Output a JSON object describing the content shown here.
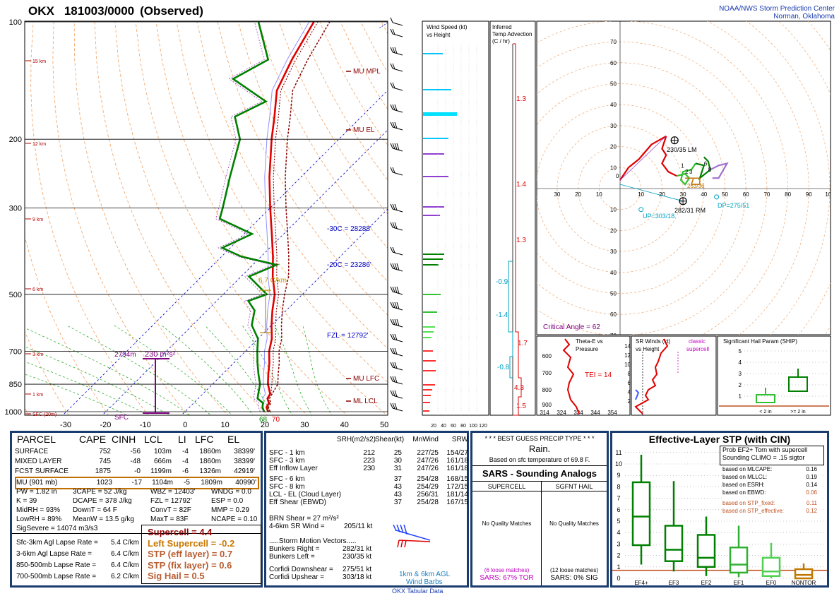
{
  "header": {
    "station": "OKX",
    "time_label": "181003/0000",
    "kind": "(Observed)",
    "org_line1": "NOAA/NWS Storm Prediction Center",
    "org_line2": "Norman, Oklahoma"
  },
  "colors": {
    "temp": "#e00000",
    "dewpoint": "#008000",
    "dry_adiabat": "#f0a060",
    "moist_adiabat": "#a0d0a0",
    "parcel": "#8b0000",
    "isotherm_ref": "#0000c0",
    "effective_inflow": "#800080",
    "panel_border": "#1a3c6e"
  },
  "chart_data": [
    {
      "type": "line",
      "name": "skewt",
      "pressure_ticks": [
        "100",
        "200",
        "300",
        "500",
        "700",
        "850",
        "1000"
      ],
      "temperature_ticks": [
        "-30",
        "-20",
        "-10",
        "0",
        "10",
        "20",
        "30",
        "40",
        "50"
      ],
      "height_labels": [
        "15 km",
        "12 km",
        "9 km",
        "6 km",
        "3 km",
        "1 km",
        "SFC (20m)"
      ],
      "annotations": {
        "mu_mpl": "MU MPL",
        "mu_el": "MU EL",
        "mu_lfc": "MU LFC",
        "ml_lcl": "ML LCL",
        "m30c": "-30C = 28288'",
        "m20c": "-20C = 23286'",
        "fzl": "FZL = 12792'",
        "lapse": "6.7 C/km",
        "eff_inflow_top": "2794m",
        "eff_inflow_srh": "230 m²s²",
        "sfc": "SFC",
        "sfc_t": "70",
        "sfc_td": "68"
      },
      "temperature_profile": [
        [
          1000,
          21
        ],
        [
          975,
          19.5
        ],
        [
          950,
          19
        ],
        [
          925,
          17.5
        ],
        [
          900,
          17
        ],
        [
          850,
          14
        ],
        [
          800,
          11.5
        ],
        [
          750,
          9
        ],
        [
          700,
          6
        ],
        [
          650,
          3.5
        ],
        [
          600,
          0
        ],
        [
          550,
          -3.5
        ],
        [
          500,
          -7
        ],
        [
          450,
          -12
        ],
        [
          400,
          -17
        ],
        [
          350,
          -23
        ],
        [
          300,
          -30
        ],
        [
          250,
          -38
        ],
        [
          200,
          -47
        ],
        [
          175,
          -52
        ],
        [
          150,
          -58
        ],
        [
          125,
          -62
        ],
        [
          100,
          -66
        ]
      ],
      "dewpoint_profile": [
        [
          1000,
          20
        ],
        [
          975,
          18.5
        ],
        [
          950,
          17.5
        ],
        [
          925,
          15
        ],
        [
          900,
          14
        ],
        [
          850,
          12
        ],
        [
          800,
          9
        ],
        [
          750,
          6
        ],
        [
          700,
          3
        ],
        [
          650,
          0
        ],
        [
          600,
          -5
        ],
        [
          550,
          -8
        ],
        [
          520,
          -12
        ],
        [
          500,
          -9
        ],
        [
          450,
          -18
        ],
        [
          420,
          -14
        ],
        [
          400,
          -25
        ],
        [
          380,
          -32
        ],
        [
          350,
          -28
        ],
        [
          320,
          -40
        ],
        [
          300,
          -42
        ],
        [
          250,
          -48
        ],
        [
          200,
          -55
        ],
        [
          175,
          -62
        ],
        [
          160,
          -58
        ],
        [
          140,
          -72
        ],
        [
          125,
          -68
        ],
        [
          100,
          -80
        ]
      ]
    },
    {
      "type": "bar",
      "name": "wind_speed",
      "title": "Wind Speed (kt) vs Height",
      "x_ticks": [
        "20",
        "40",
        "60",
        "80",
        "100",
        "120"
      ]
    },
    {
      "type": "line",
      "name": "temp_advection",
      "title": "Inferred Temp Advection (C / hr)",
      "labels": [
        "1.3",
        "1.4",
        "1.3",
        "-0.9",
        "-1.4",
        "1.7",
        "-0.8",
        "4.3",
        "1.5"
      ]
    },
    {
      "type": "line",
      "name": "hodograph",
      "rings": [
        "10",
        "20",
        "30",
        "40",
        "50",
        "60",
        "70"
      ],
      "x_ticks": [
        "30",
        "20",
        "10",
        "10",
        "20",
        "30",
        "40",
        "50",
        "60",
        "70",
        "80",
        "90",
        "100"
      ],
      "labels": {
        "lm": "230/35 LM",
        "rm": "282/31 RM",
        "mean": "263/36",
        "dp": "DP=275/51",
        "up": "UP=303/18",
        "critical_angle": "Critical Angle = 62"
      },
      "points_labels": [
        "0",
        "1",
        "2",
        "3",
        "6",
        "8"
      ]
    },
    {
      "type": "line",
      "name": "theta_e",
      "title": "Theta-E vs Pressure",
      "tei": "TEI = 14",
      "y_ticks": [
        "600",
        "700",
        "800",
        "900"
      ],
      "x_ticks": [
        "314",
        "324",
        "334",
        "344",
        "354"
      ]
    },
    {
      "type": "line",
      "name": "sr_winds",
      "title": "SR Winds (kt) vs Height",
      "subtitle": "classic supercell",
      "y_ticks": [
        "14",
        "12",
        "10",
        "8",
        "6",
        "4",
        "2"
      ]
    },
    {
      "type": "bar",
      "name": "ship",
      "title": "Significant Hail Param (SHIP)",
      "y_ticks": [
        "5",
        "4",
        "3",
        "2",
        "1"
      ],
      "categories": [
        "< 2 in",
        ">= 2 in"
      ]
    },
    {
      "type": "bar",
      "name": "stp",
      "title": "Effective-Layer STP (with CIN)",
      "y_ticks": [
        "11",
        "10",
        "9",
        "8",
        "7",
        "6",
        "5",
        "4",
        "3",
        "2",
        "1",
        "0"
      ],
      "categories": [
        "EF4+",
        "EF3",
        "EF2",
        "EF1",
        "EF0",
        "NONTOR"
      ],
      "boxes": [
        {
          "cat": "EF4+",
          "lo": 1.2,
          "q1": 2.9,
          "med": 5.4,
          "q3": 8.4,
          "hi": 10.8
        },
        {
          "cat": "EF3",
          "lo": 0.6,
          "q1": 1.5,
          "med": 2.5,
          "q3": 4.6,
          "hi": 8.5
        },
        {
          "cat": "EF2",
          "lo": 0.2,
          "q1": 1.0,
          "med": 1.8,
          "q3": 3.8,
          "hi": 5.4
        },
        {
          "cat": "EF1",
          "lo": 0.1,
          "q1": 0.5,
          "med": 1.2,
          "q3": 2.7,
          "hi": 4.6
        },
        {
          "cat": "EF0",
          "lo": 0.0,
          "q1": 0.2,
          "med": 0.6,
          "q3": 1.8,
          "hi": 3.1
        },
        {
          "cat": "NONTOR",
          "lo": 0.0,
          "q1": 0.0,
          "med": 0.3,
          "q3": 0.8,
          "hi": 1.3
        }
      ],
      "prob_title": "Prob EF2+ Torn with supercell",
      "sounding_climo": "Sounding CLIMO = .15 sigtor",
      "based": [
        {
          "label": "based on MLCAPE:",
          "value": "0.16"
        },
        {
          "label": "based on MLLCL:",
          "value": "0.19"
        },
        {
          "label": "based on ESRH:",
          "value": "0.14"
        },
        {
          "label": "based on EBWD:",
          "value": "0.06"
        },
        {
          "label": "based on STP_fixed:",
          "value": "0.11"
        },
        {
          "label": "based on STP_effective:",
          "value": "0.12"
        }
      ]
    }
  ],
  "parcel_table": {
    "headers": [
      "PARCEL",
      "CAPE",
      "CINH",
      "LCL",
      "LI",
      "LFC",
      "EL"
    ],
    "rows": [
      [
        "SURFACE",
        "752",
        "-56",
        "103m",
        "-4",
        "1860m",
        "38399'"
      ],
      [
        "MIXED LAYER",
        "745",
        "-48",
        "666m",
        "-4",
        "1860m",
        "38399'"
      ],
      [
        "FCST SURFACE",
        "1875",
        "-0",
        "1199m",
        "-6",
        "1326m",
        "42919'"
      ],
      [
        "MU   (901 mb)",
        "1023",
        "-17",
        "1104m",
        "-5",
        "1809m",
        "40990'"
      ]
    ]
  },
  "thermo_indices": [
    [
      "PW = 1.82 in",
      "3CAPE = 52 J/kg",
      "WBZ = 12403'",
      "WNDG = 0.0"
    ],
    [
      "K = 39",
      "DCAPE = 378 J/kg",
      "FZL = 12792'",
      "ESP = 0.0"
    ],
    [
      "MidRH = 93%",
      "DownT = 64 F",
      "ConvT = 82F",
      "MMP = 0.29"
    ],
    [
      "LowRH = 89%",
      "MeanW = 13.5 g/kg",
      "MaxT = 83F",
      "NCAPE = 0.10"
    ]
  ],
  "sig_severe": "SigSevere = 14074 m3/s3",
  "lapse_rates": [
    {
      "label": "Sfc-3km Agl Lapse Rate =",
      "value": "5.4 C/km"
    },
    {
      "label": "3-6km Agl Lapse Rate =",
      "value": "6.4 C/km"
    },
    {
      "label": "850-500mb Lapse Rate =",
      "value": "6.4 C/km"
    },
    {
      "label": "700-500mb Lapse Rate =",
      "value": "6.2 C/km"
    }
  ],
  "composite_params": [
    {
      "text": "Supercell = 4.4",
      "color": "#8b0000"
    },
    {
      "text": "Left Supercell = -0.2",
      "color": "#c87800"
    },
    {
      "text": "STP (eff layer) = 0.7",
      "color": "#b85c30"
    },
    {
      "text": "STP (fix layer) = 0.6",
      "color": "#b85c30"
    },
    {
      "text": "Sig Hail = 0.5",
      "color": "#b85c30"
    }
  ],
  "kinematics": {
    "headers": [
      "SRH(m2/s2)",
      "Shear(kt)",
      "MnWind",
      "SRW"
    ],
    "rows": [
      [
        "SFC - 1 km",
        "212",
        "25",
        "227/25",
        "154/27"
      ],
      [
        "SFC - 3 km",
        "223",
        "30",
        "247/26",
        "161/18"
      ],
      [
        "Eff Inflow Layer",
        "230",
        "31",
        "247/26",
        "161/18"
      ],
      [
        "",
        "",
        "",
        "",
        ""
      ],
      [
        "SFC - 6 km",
        "",
        "37",
        "254/28",
        "168/15"
      ],
      [
        "SFC - 8 km",
        "",
        "43",
        "254/29",
        "172/15"
      ],
      [
        "LCL - EL (Cloud Layer)",
        "",
        "43",
        "256/31",
        "181/14"
      ],
      [
        "Eff Shear (EBWD)",
        "",
        "37",
        "254/28",
        "167/15"
      ]
    ],
    "brn_shear": "BRN Shear =  27 m²/s²",
    "sr_wind_46": "4-6km SR Wind =",
    "sr_wind_46_val": "205/11 kt",
    "storm_motion_title": ".....Storm Motion Vectors.....",
    "bunkers_right": "Bunkers Right =",
    "bunkers_right_val": "282/31 kt",
    "bunkers_left": "Bunkers Left =",
    "bunkers_left_val": "230/35 kt",
    "corfidi_down": "Corfidi Downshear =",
    "corfidi_down_val": "275/51 kt",
    "corfidi_up": "Corfidi Upshear =",
    "corfidi_up_val": "303/18 kt",
    "barbs_label1": "1km & 6km AGL",
    "barbs_label2": "Wind Barbs"
  },
  "precip": {
    "title": "* * * BEST GUESS PRECIP TYPE * * *",
    "value": "Rain.",
    "note": "Based on sfc temperature of 69.8 F."
  },
  "sars": {
    "title": "SARS - Sounding Analogs",
    "supercell_header": "SUPERCELL",
    "hail_header": "SGFNT HAIL",
    "supercell_body": "No Quality Matches",
    "hail_body": "No Quality Matches",
    "supercell_loose": "(6 loose matches)",
    "hail_loose": "(12 loose matches)",
    "supercell_result": "SARS:  67% TOR",
    "hail_result": "SARS:  0% SIG"
  },
  "footer": "OKX Tabular Data"
}
